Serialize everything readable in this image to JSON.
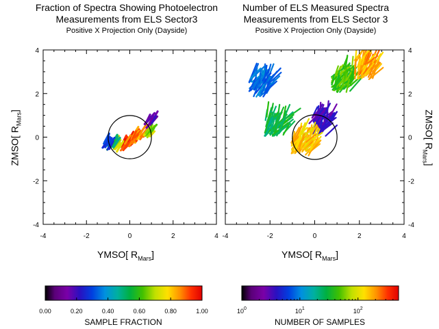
{
  "chart_data": [
    {
      "type": "heatmap",
      "title_line1": "Fraction of Spectra Showing Photoelectron",
      "title_line2": "Measurements from ELS Sector3",
      "subtitle": "Positive X Projection Only (Dayside)",
      "xlabel": "YMSO[ R",
      "xlabel_sub": "Mars",
      "xlabel_end": "]",
      "ylabel": "ZMSO[ R",
      "ylabel_sub": "Mars",
      "ylabel_end": "]",
      "xlim": [
        -4,
        4
      ],
      "ylim": [
        -4,
        4
      ],
      "xticks": [
        "-4",
        "-2",
        "0",
        "2",
        "4"
      ],
      "yticks": [
        "4",
        "2",
        "0",
        "-2",
        "-4"
      ],
      "mars_circle_radius": 1,
      "colorbar": {
        "label": "SAMPLE FRACTION",
        "scale": "linear",
        "range": [
          0,
          1
        ],
        "ticks": [
          "0.00",
          "0.20",
          "0.40",
          "0.60",
          "0.80",
          "1.00"
        ]
      },
      "regions": [
        {
          "x": -0.3,
          "y": -0.45,
          "value": 0.95
        },
        {
          "x": -0.05,
          "y": -0.25,
          "value": 0.92
        },
        {
          "x": 0.25,
          "y": -0.1,
          "value": 0.9
        },
        {
          "x": 0.5,
          "y": 0.05,
          "value": 0.88
        },
        {
          "x": -0.6,
          "y": -0.5,
          "value": 0.75
        },
        {
          "x": -0.9,
          "y": -0.45,
          "value": 0.55
        },
        {
          "x": 0.8,
          "y": 0.15,
          "value": 0.7
        },
        {
          "x": -1.1,
          "y": -0.4,
          "value": 0.3
        },
        {
          "x": 0.85,
          "y": 0.6,
          "value": 0.15
        }
      ]
    },
    {
      "type": "heatmap",
      "title_line1": "Number of ELS Measured Spectra",
      "title_line2": "Measurements from ELS Sector 3",
      "subtitle": "Positive X Projection Only (Dayside)",
      "xlabel": "YMSO[ R",
      "xlabel_sub": "Mars",
      "xlabel_end": "]",
      "ylabel": "ZMSO[ R",
      "ylabel_sub": "Mars",
      "ylabel_end": "]",
      "xlim": [
        -4,
        4
      ],
      "ylim": [
        -4,
        4
      ],
      "xticks": [
        "-4",
        "-2",
        "0",
        "2",
        "4"
      ],
      "yticks": [
        "4",
        "2",
        "0",
        "-2",
        "-4"
      ],
      "mars_circle_radius": 1,
      "colorbar": {
        "label": "NUMBER OF SAMPLES",
        "scale": "log",
        "range": [
          1,
          500
        ],
        "ticks": [
          "10",
          "10",
          "10"
        ],
        "tick_exponents": [
          "0",
          "1",
          "2"
        ]
      },
      "regions": [
        {
          "x": -1.8,
          "y": 0.5,
          "value_log": 1.5
        },
        {
          "x": 0.2,
          "y": 0.5,
          "value_log": 0.5
        },
        {
          "x": 1.2,
          "y": 2.5,
          "value_log": 1.7
        },
        {
          "x": 2.2,
          "y": 3.1,
          "value_log": 2.3
        },
        {
          "x": -2.5,
          "y": 2.3,
          "value_log": 1.0
        },
        {
          "x": -0.6,
          "y": -0.4,
          "value_log": 2.2
        }
      ]
    }
  ]
}
